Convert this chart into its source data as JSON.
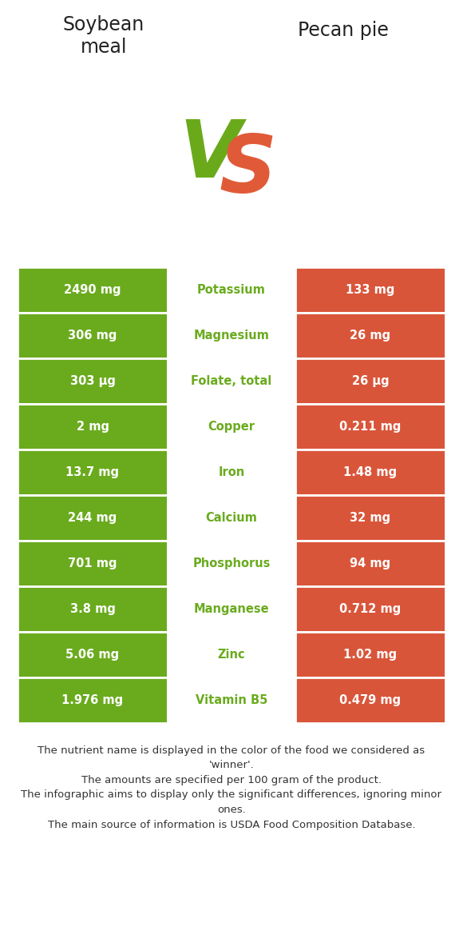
{
  "title_left": "Soybean\nmeal",
  "title_right": "Pecan pie",
  "vs_color_v": "#6aaa1a",
  "vs_color_s": "#e05a38",
  "green_color": "#6aab1e",
  "red_color": "#d9553a",
  "bg_color": "#ffffff",
  "rows": [
    {
      "nutrient": "Potassium",
      "left": "2490 mg",
      "right": "133 mg",
      "winner": "left"
    },
    {
      "nutrient": "Magnesium",
      "left": "306 mg",
      "right": "26 mg",
      "winner": "left"
    },
    {
      "nutrient": "Folate, total",
      "left": "303 μg",
      "right": "26 μg",
      "winner": "left"
    },
    {
      "nutrient": "Copper",
      "left": "2 mg",
      "right": "0.211 mg",
      "winner": "left"
    },
    {
      "nutrient": "Iron",
      "left": "13.7 mg",
      "right": "1.48 mg",
      "winner": "left"
    },
    {
      "nutrient": "Calcium",
      "left": "244 mg",
      "right": "32 mg",
      "winner": "left"
    },
    {
      "nutrient": "Phosphorus",
      "left": "701 mg",
      "right": "94 mg",
      "winner": "left"
    },
    {
      "nutrient": "Manganese",
      "left": "3.8 mg",
      "right": "0.712 mg",
      "winner": "left"
    },
    {
      "nutrient": "Zinc",
      "left": "5.06 mg",
      "right": "1.02 mg",
      "winner": "left"
    },
    {
      "nutrient": "Vitamin B5",
      "left": "1.976 mg",
      "right": "0.479 mg",
      "winner": "left"
    }
  ],
  "footnote_lines": [
    "The nutrient name is displayed in the color of the food we considered as",
    "'winner'.",
    "The amounts are specified per 100 gram of the product.",
    "The infographic aims to display only the significant differences, ignoring minor",
    "ones.",
    "The main source of information is USDA Food Composition Database."
  ],
  "footnote_fontsize": 9.5,
  "title_fontsize": 17,
  "value_fontsize": 10.5,
  "nutrient_fontsize": 10.5
}
